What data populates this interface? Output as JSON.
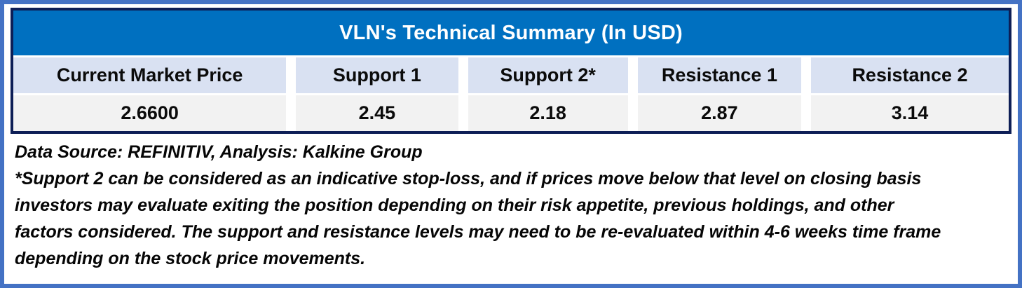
{
  "title": "VLN's Technical Summary (In USD)",
  "table": {
    "headers": [
      "Current Market Price",
      "Support 1",
      "Support 2*",
      "Resistance 1",
      "Resistance 2"
    ],
    "values": [
      "2.6600",
      "2.45",
      "2.18",
      "2.87",
      "3.14"
    ]
  },
  "notes": {
    "data_source": "Data Source: REFINITIV, Analysis: Kalkine Group",
    "footnote_lines": [
      "*Support 2 can be considered as an indicative stop-loss, and if prices move below that level on closing basis",
      "investors may evaluate exiting the position depending on their risk appetite, previous holdings, and other",
      "factors considered. The support and resistance levels may need to be re-evaluated within 4-6 weeks time frame",
      "depending on the stock price movements."
    ]
  },
  "colors": {
    "frame_border": "#4472C4",
    "table_border": "#0D1E56",
    "title_bg": "#0070C0",
    "title_text": "#FFFFFF",
    "header_bg": "#D9E1F2",
    "value_bg": "#F2F2F2",
    "text": "#0B0B0B"
  }
}
